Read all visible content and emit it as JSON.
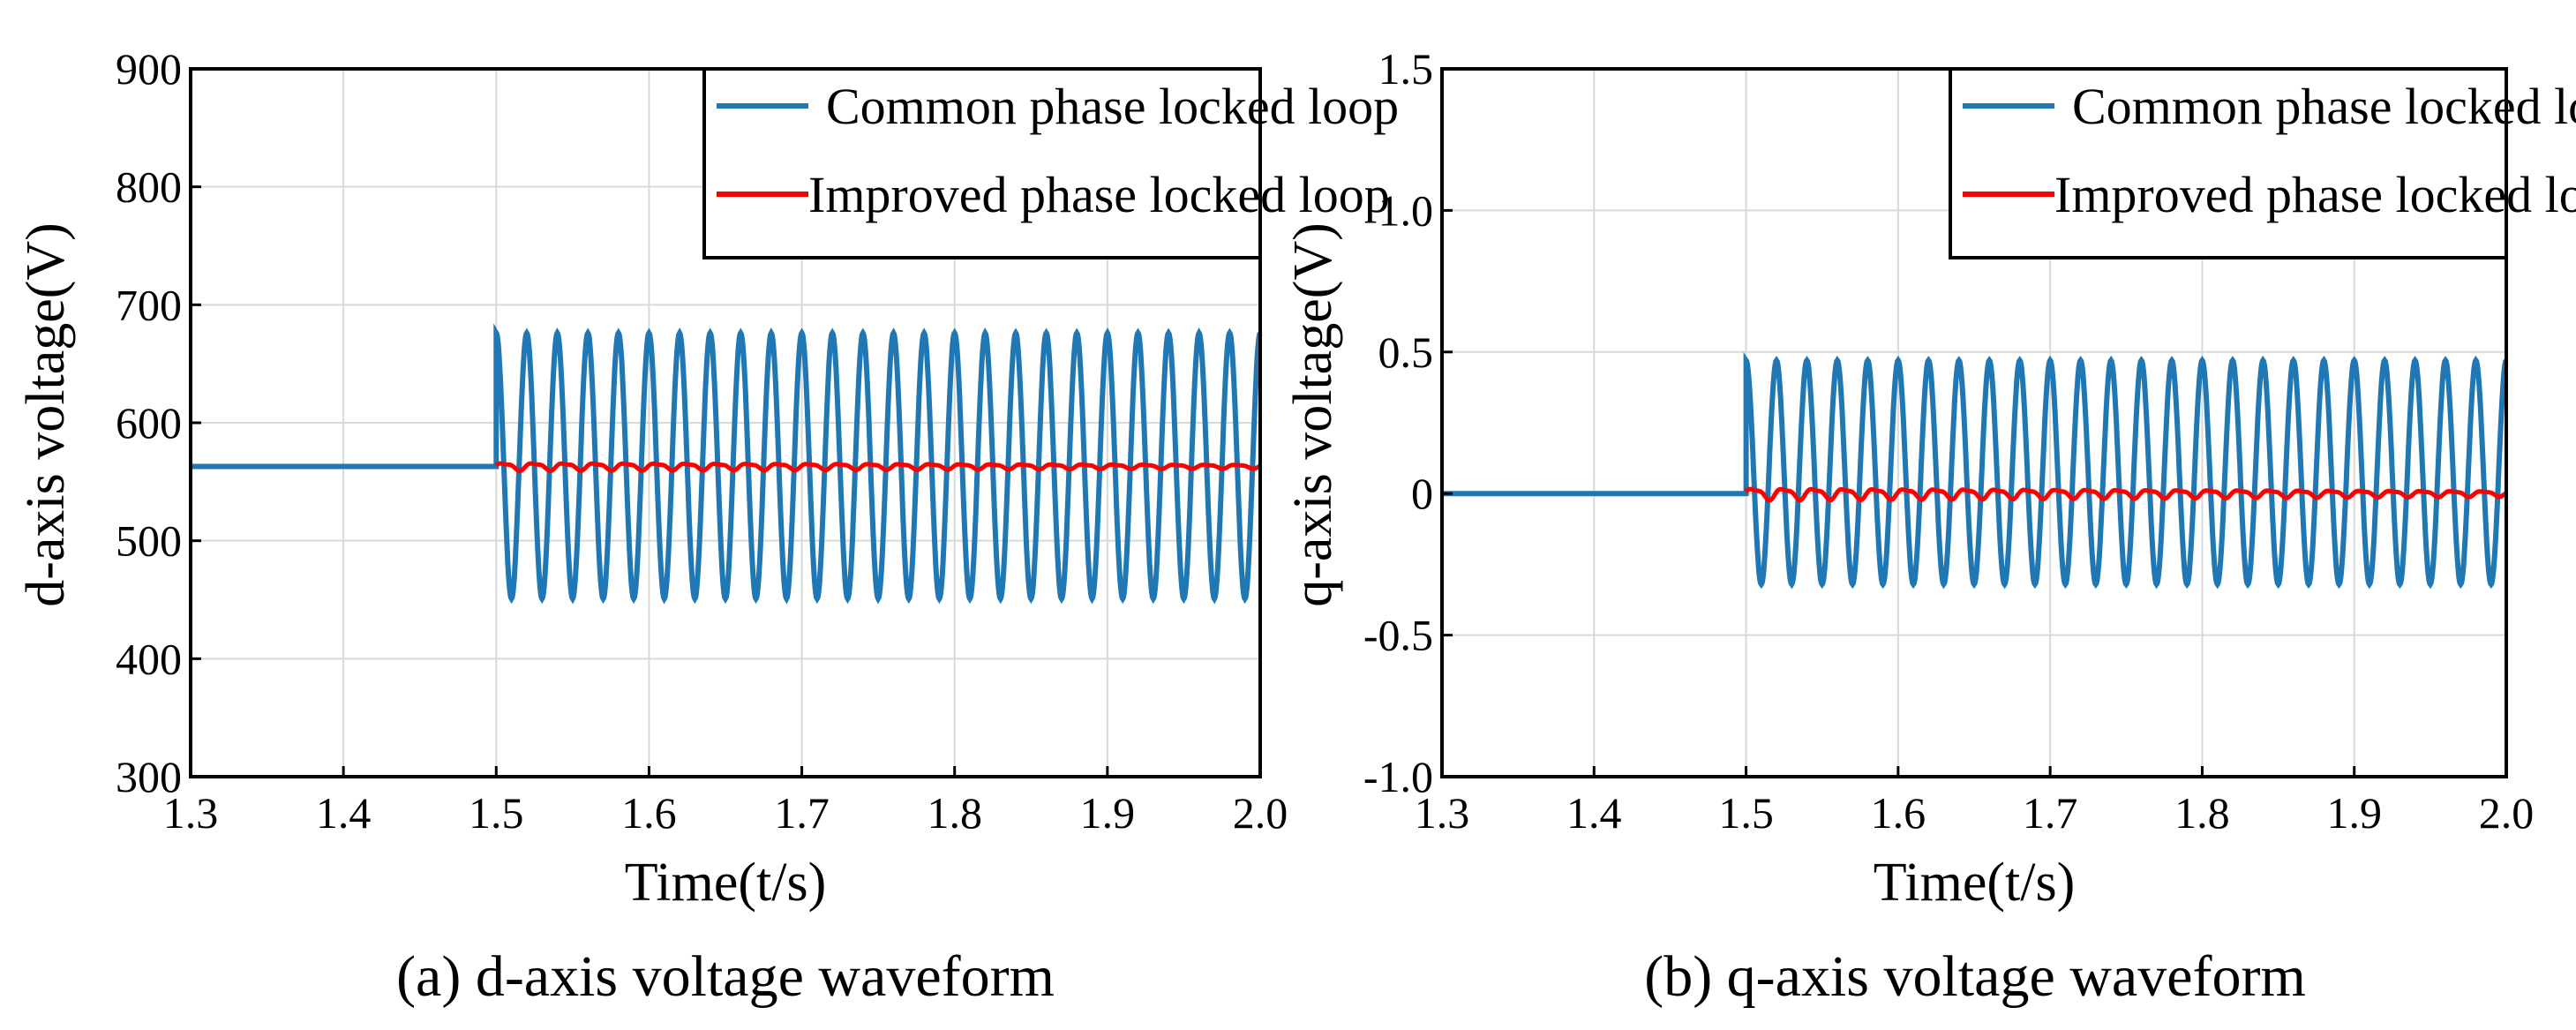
{
  "colors": {
    "common": "#1f77b4",
    "improved": "#ff0000",
    "grid": "#d9d9d9",
    "axis": "#000000"
  },
  "chart_data": [
    {
      "type": "line",
      "caption": "(a) d-axis voltage waveform",
      "xlabel": "Time(t/s)",
      "ylabel": "d-axis voltage(V)",
      "xlim": [
        1.3,
        2.0
      ],
      "ylim": [
        300,
        900
      ],
      "xticks": [
        1.3,
        1.4,
        1.5,
        1.6,
        1.7,
        1.8,
        1.9,
        2.0
      ],
      "xtick_labels": [
        "1.3",
        "1.4",
        "1.5",
        "1.6",
        "1.7",
        "1.8",
        "1.9",
        "2.0"
      ],
      "yticks": [
        300,
        400,
        500,
        600,
        700,
        800,
        900
      ],
      "ytick_labels": [
        "300",
        "400",
        "500",
        "600",
        "700",
        "800",
        "900"
      ],
      "legend_position": "top-right",
      "series": [
        {
          "name": "Common phase locked loop",
          "description": "constant 563 V before 1.5 s, then sinusoidal oscillation between 451 V and 676 V at 50 Hz",
          "x": [
            1.3,
            1.5,
            1.5,
            2.0
          ],
          "steady_value": 563,
          "disturbance_time": 1.5,
          "oscillation_min": 451,
          "oscillation_max": 676,
          "oscillation_frequency_hz": 50
        },
        {
          "name": "Improved phase locked loop",
          "description": "small ripple around 563 V after 1.5 s (about 567 V peak, decaying to about 562 V)",
          "x": [
            1.5,
            2.0
          ],
          "steady_value": 563,
          "ripple_amplitude_start": 4,
          "ripple_amplitude_end": 2
        }
      ]
    },
    {
      "type": "line",
      "caption": "(b) q-axis voltage waveform",
      "xlabel": "Time(t/s)",
      "ylabel": "q-axis voltage(V)",
      "xlim": [
        1.3,
        2.0
      ],
      "ylim": [
        -1.0,
        1.5
      ],
      "xticks": [
        1.3,
        1.4,
        1.5,
        1.6,
        1.7,
        1.8,
        1.9,
        2.0
      ],
      "xtick_labels": [
        "1.3",
        "1.4",
        "1.5",
        "1.6",
        "1.7",
        "1.8",
        "1.9",
        "2.0"
      ],
      "yticks": [
        -1.0,
        -0.5,
        0,
        0.5,
        1.0,
        1.5
      ],
      "ytick_labels": [
        "-1.0",
        "-0.5",
        "0",
        "0.5",
        "1.0",
        "1.5"
      ],
      "legend_position": "top-right",
      "series": [
        {
          "name": "Common phase locked loop",
          "description": "0 V before 1.5 s, then sinusoidal oscillation between -0.32 V and 0.47 V at 50 Hz",
          "x": [
            1.3,
            1.5,
            1.5,
            2.0
          ],
          "steady_value": 0,
          "disturbance_time": 1.5,
          "oscillation_min": -0.32,
          "oscillation_max": 0.47,
          "oscillation_frequency_hz": 50
        },
        {
          "name": "Improved phase locked loop",
          "description": "small ripple around 0 V after 1.5 s (about ±0.02 V)",
          "x": [
            1.5,
            2.0
          ],
          "steady_value": 0,
          "ripple_amplitude_start": 0.025,
          "ripple_amplitude_end": 0.012
        }
      ]
    }
  ]
}
